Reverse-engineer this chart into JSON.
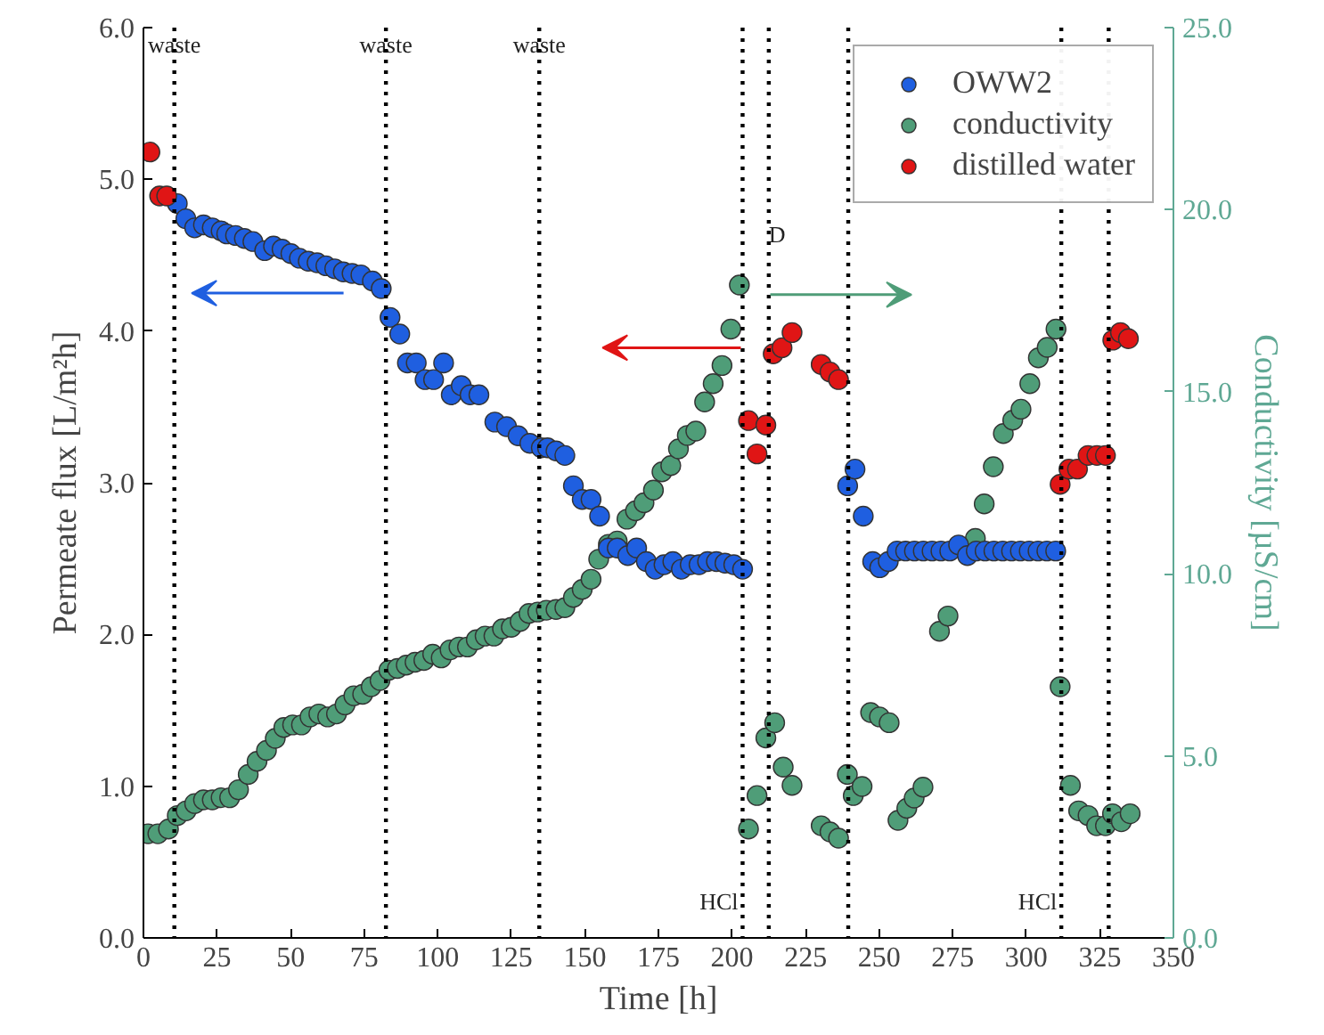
{
  "chart_data": {
    "type": "scatter",
    "xlabel": "Time [h]",
    "ylabel": "Permeate flux [L/m²h]",
    "y2label": "Conductivity [µS/cm]",
    "xlim": [
      0,
      350
    ],
    "xticks": [
      0,
      25,
      50,
      75,
      100,
      125,
      150,
      175,
      200,
      225,
      250,
      275,
      300,
      325,
      350
    ],
    "ylim": [
      0,
      6
    ],
    "yticks": [
      {
        "value": 0,
        "label": "0.0"
      },
      {
        "value": 1,
        "label": "1.0"
      },
      {
        "value": 2,
        "label": "2.0"
      },
      {
        "value": 3,
        "label": "3.0"
      },
      {
        "value": 4,
        "label": "4.0"
      },
      {
        "value": 5,
        "label": "5.0"
      },
      {
        "value": 6,
        "label": "6.0"
      }
    ],
    "y2lim": [
      0,
      25
    ],
    "y2ticks": [
      {
        "value": 0,
        "label": "0.0"
      },
      {
        "value": 5,
        "label": "5.0"
      },
      {
        "value": 10,
        "label": "10.0"
      },
      {
        "value": 15,
        "label": "15.0"
      },
      {
        "value": 20,
        "label": "20.0"
      },
      {
        "value": 25,
        "label": "25.0"
      }
    ],
    "grid": false,
    "legend": "top right",
    "marker": "circle",
    "series": [
      {
        "name": "OWW2",
        "color": "#1f5fe0",
        "x": [
          11.5,
          14.4,
          17.4,
          20.4,
          23.4,
          26.4,
          28.3,
          31.3,
          34.3,
          37.2,
          41.2,
          44.2,
          47.1,
          50.1,
          53,
          56,
          59,
          62,
          65,
          67.9,
          70.9,
          73.9,
          77.8,
          80.8,
          83.8,
          87.1,
          89.7,
          92.7,
          95.7,
          98.6,
          102,
          104.6,
          108,
          111,
          114,
          119.4,
          123.4,
          127.3,
          131.3,
          135.2,
          137.3,
          140.2,
          143.2,
          146.1,
          149.1,
          152.1,
          155,
          158,
          161,
          164.6,
          167.6,
          170.9,
          173.9,
          176.9,
          179.9,
          182.8,
          185.8,
          188.8,
          191.7,
          194.7,
          197.6,
          200.6,
          203.6,
          239.3,
          241.8,
          244.6,
          247.8,
          250.2,
          253.1,
          256.1,
          259,
          262,
          265,
          268,
          271,
          274,
          277,
          280,
          283,
          286,
          289,
          292,
          295,
          298,
          301,
          304,
          307,
          310
        ],
        "values": [
          4.84,
          4.74,
          4.68,
          4.7,
          4.68,
          4.66,
          4.64,
          4.63,
          4.61,
          4.59,
          4.53,
          4.56,
          4.54,
          4.51,
          4.48,
          4.46,
          4.45,
          4.43,
          4.41,
          4.39,
          4.38,
          4.37,
          4.33,
          4.28,
          4.09,
          3.98,
          3.79,
          3.79,
          3.68,
          3.68,
          3.79,
          3.58,
          3.64,
          3.58,
          3.58,
          3.4,
          3.37,
          3.31,
          3.26,
          3.23,
          3.23,
          3.21,
          3.18,
          2.98,
          2.89,
          2.89,
          2.78,
          2.57,
          2.57,
          2.52,
          2.57,
          2.48,
          2.43,
          2.46,
          2.48,
          2.43,
          2.46,
          2.46,
          2.48,
          2.48,
          2.47,
          2.46,
          2.43,
          2.98,
          3.09,
          2.78,
          2.48,
          2.44,
          2.48,
          2.55,
          2.55,
          2.55,
          2.55,
          2.55,
          2.55,
          2.55,
          2.59,
          2.52,
          2.55,
          2.55,
          2.55,
          2.55,
          2.55,
          2.55,
          2.55,
          2.55,
          2.55,
          2.55
        ]
      },
      {
        "name": "conductivity",
        "color": "#4f9d78",
        "axis": "y2",
        "x": [
          1.6,
          4.9,
          8.5,
          11.5,
          14.5,
          17.4,
          20.4,
          23.4,
          26.4,
          29.3,
          32.3,
          35.6,
          38.6,
          41.8,
          44.8,
          47.7,
          50.7,
          53.7,
          56.6,
          59.6,
          62.6,
          65.6,
          68.5,
          71.5,
          74.5,
          77.4,
          80.4,
          83.4,
          86.3,
          89.3,
          92.3,
          95.3,
          98.3,
          101.2,
          104.2,
          107.2,
          110.1,
          113.1,
          116.1,
          119.1,
          122,
          125,
          128,
          131,
          134,
          136.9,
          140.2,
          143.2,
          146.1,
          149.1,
          152.1,
          154.7,
          158,
          161,
          164.3,
          167.2,
          170.1,
          173.3,
          176.2,
          179.2,
          181.8,
          184.8,
          187.7,
          190.7,
          193.6,
          196.6,
          199.6,
          202.5,
          205.6,
          208.5,
          211.5,
          214.5,
          217.4,
          220.4,
          230.3,
          233.3,
          236.2,
          239.2,
          241.2,
          244.2,
          247.1,
          250.1,
          253.4,
          256.4,
          259.4,
          261.9,
          264.9,
          270.5,
          273.4,
          282.7,
          285.7,
          288.8,
          292.2,
          295.4,
          298.2,
          301.2,
          304.1,
          307.1,
          310.1,
          311.5,
          315,
          317.8,
          321,
          323.9,
          326.9,
          329.3,
          332.3,
          335.3
        ],
        "values": [
          2.86,
          2.86,
          2.99,
          3.36,
          3.49,
          3.69,
          3.79,
          3.79,
          3.85,
          3.85,
          4.07,
          4.49,
          4.85,
          5.15,
          5.48,
          5.78,
          5.85,
          5.85,
          6.07,
          6.15,
          6.07,
          6.15,
          6.4,
          6.65,
          6.69,
          6.9,
          7.07,
          7.35,
          7.4,
          7.49,
          7.57,
          7.62,
          7.79,
          7.69,
          7.91,
          7.99,
          7.99,
          8.19,
          8.29,
          8.29,
          8.49,
          8.53,
          8.69,
          8.91,
          8.95,
          9.0,
          9.02,
          9.07,
          9.35,
          9.57,
          9.85,
          10.4,
          10.81,
          10.9,
          11.5,
          11.73,
          11.95,
          12.3,
          12.8,
          12.97,
          13.43,
          13.8,
          13.92,
          14.72,
          15.22,
          15.72,
          16.72,
          17.93,
          2.99,
          3.91,
          5.49,
          5.91,
          4.69,
          4.19,
          3.08,
          2.91,
          2.74,
          4.49,
          3.91,
          4.16,
          6.19,
          6.07,
          5.91,
          3.23,
          3.56,
          3.84,
          4.14,
          8.42,
          8.84,
          10.97,
          11.92,
          12.94,
          13.85,
          14.22,
          14.52,
          15.22,
          15.93,
          16.22,
          16.72,
          6.9,
          4.19,
          3.49,
          3.36,
          3.08,
          3.08,
          3.41,
          3.19,
          3.41
        ]
      },
      {
        "name": "distilled water",
        "color": "#e01515",
        "x": [
          2.2,
          5.5,
          7.9,
          205.6,
          208.5,
          211.5,
          214,
          217,
          220.4,
          230.3,
          233.3,
          236.2,
          311.5,
          314.5,
          317.4,
          321,
          324,
          326.9,
          329.4,
          332,
          334.7
        ],
        "values": [
          5.18,
          4.89,
          4.89,
          3.41,
          3.19,
          3.38,
          3.85,
          3.89,
          3.99,
          3.78,
          3.73,
          3.68,
          2.99,
          3.09,
          3.09,
          3.18,
          3.18,
          3.18,
          3.94,
          3.99,
          3.95
        ]
      }
    ],
    "ref_lines": [
      {
        "axis": "x",
        "value": 10.5,
        "line_style": "dotted"
      },
      {
        "axis": "x",
        "value": 82.4,
        "line_style": "dotted"
      },
      {
        "axis": "x",
        "value": 134.5,
        "line_style": "dotted"
      },
      {
        "axis": "x",
        "value": 203.6,
        "line_style": "dotted"
      },
      {
        "axis": "x",
        "value": 212.5,
        "line_style": "dotted"
      },
      {
        "axis": "x",
        "value": 239.5,
        "line_style": "dotted"
      },
      {
        "axis": "x",
        "value": 311.9,
        "line_style": "dotted"
      },
      {
        "axis": "x",
        "value": 328,
        "line_style": "dotted"
      }
    ],
    "annotations": [
      {
        "text": "waste",
        "x": 10.5,
        "y": 5.8
      },
      {
        "text": "waste",
        "x": 82.4,
        "y": 5.8
      },
      {
        "text": "waste",
        "x": 134.5,
        "y": 5.8
      },
      {
        "text": "D",
        "x": 212.5,
        "y": 4.55
      },
      {
        "text": "HCl",
        "x": 203.6,
        "y": 0.15
      },
      {
        "text": "HCl",
        "x": 311.9,
        "y": 0.15
      }
    ]
  }
}
